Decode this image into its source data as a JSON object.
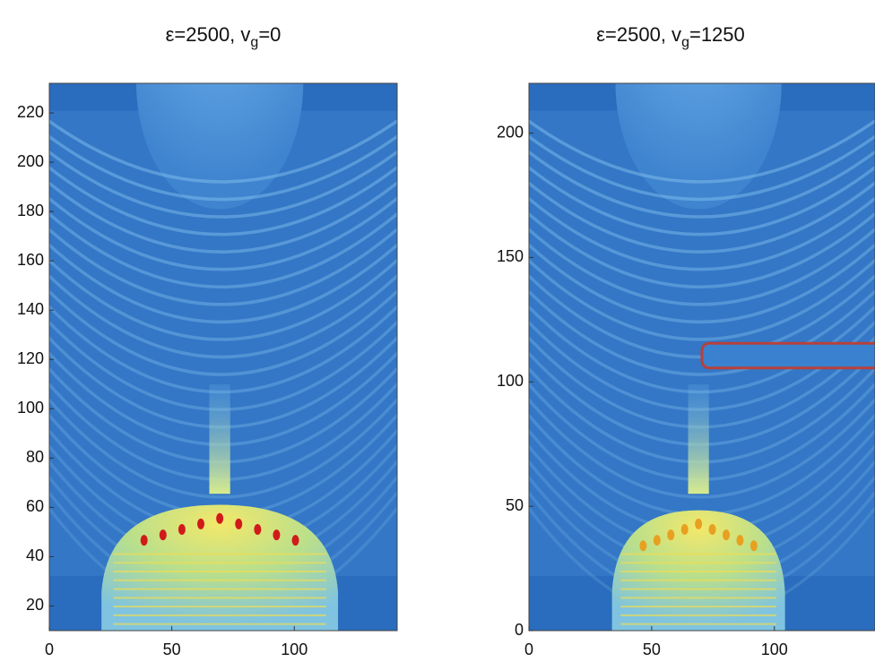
{
  "chart_data": [
    {
      "type": "image",
      "title": "ε=2500, v",
      "title_subscript": "g",
      "title_suffix": "=0",
      "xlim": [
        0,
        142
      ],
      "ylim": [
        10,
        232
      ],
      "xticks": [
        0,
        50,
        100
      ],
      "yticks": [
        20,
        40,
        60,
        80,
        100,
        120,
        140,
        160,
        180,
        200,
        220
      ]
    },
    {
      "type": "image",
      "title": "ε=2500, v",
      "title_subscript": "g",
      "title_suffix": "=1250",
      "xlim": [
        0,
        141
      ],
      "ylim": [
        0,
        220
      ],
      "xticks": [
        0,
        50,
        100
      ],
      "yticks": [
        0,
        50,
        100,
        150,
        200
      ]
    }
  ]
}
